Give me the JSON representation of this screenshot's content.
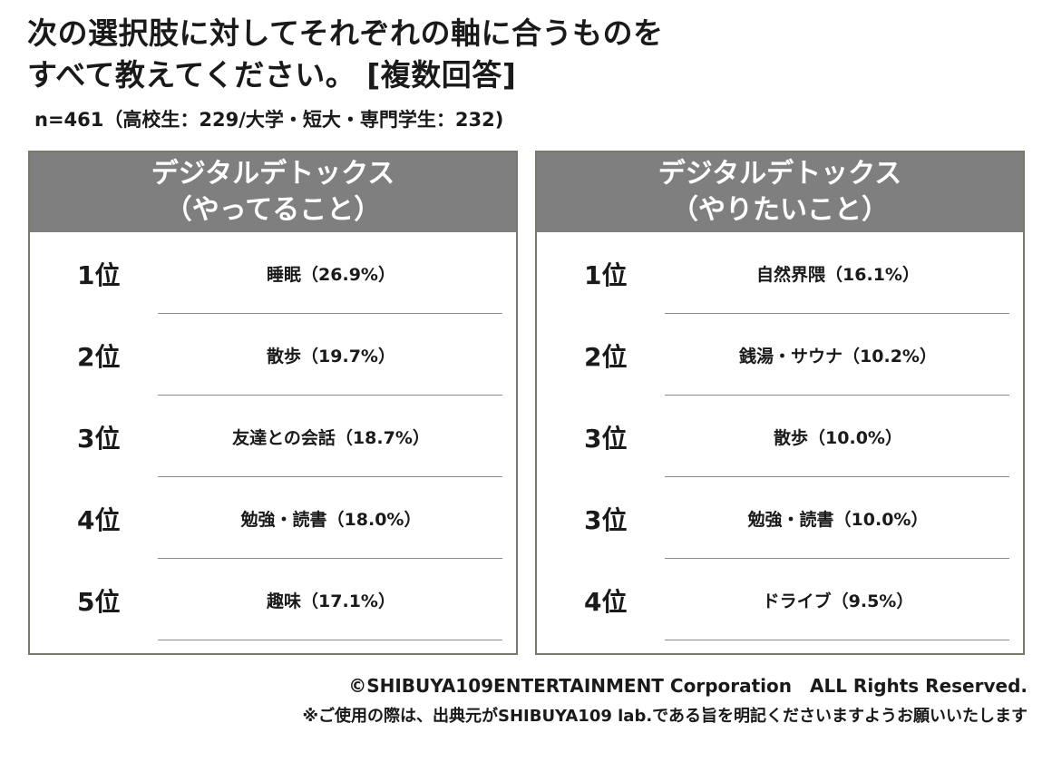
{
  "title_line1": "次の選択肢に対してそれぞれの軸に合うものを",
  "title_line2": "すべて教えてください。 [複数回答]",
  "sample": "n=461（高校生：229/大学・短大・専門学生：232)",
  "chart_data": {
    "type": "table",
    "tables": [
      {
        "header_line1": "デジタルデトックス",
        "header_line2": "（やってること）",
        "rows": [
          {
            "rank": "1位",
            "item": "睡眠（26.9%）",
            "value": 26.9
          },
          {
            "rank": "2位",
            "item": "散歩（19.7%）",
            "value": 19.7
          },
          {
            "rank": "3位",
            "item": "友達との会話（18.7%）",
            "value": 18.7
          },
          {
            "rank": "4位",
            "item": "勉強・読書（18.0%）",
            "value": 18.0
          },
          {
            "rank": "5位",
            "item": "趣味（17.1%）",
            "value": 17.1
          }
        ]
      },
      {
        "header_line1": "デジタルデトックス",
        "header_line2": "（やりたいこと）",
        "rows": [
          {
            "rank": "1位",
            "item": "自然界隈（16.1%）",
            "value": 16.1
          },
          {
            "rank": "2位",
            "item": "銭湯・サウナ（10.2%）",
            "value": 10.2
          },
          {
            "rank": "3位",
            "item": "散歩（10.0%）",
            "value": 10.0
          },
          {
            "rank": "3位",
            "item": "勉強・読書（10.0%）",
            "value": 10.0
          },
          {
            "rank": "4位",
            "item": "ドライブ（9.5%）",
            "value": 9.5
          }
        ]
      }
    ]
  },
  "copyright": "©SHIBUYA109ENTERTAINMENT Corporation　ALL Rights Reserved.",
  "note": "※ご使用の際は、出典元がSHIBUYA109 lab.である旨を明記くださいますようお願いいたします"
}
